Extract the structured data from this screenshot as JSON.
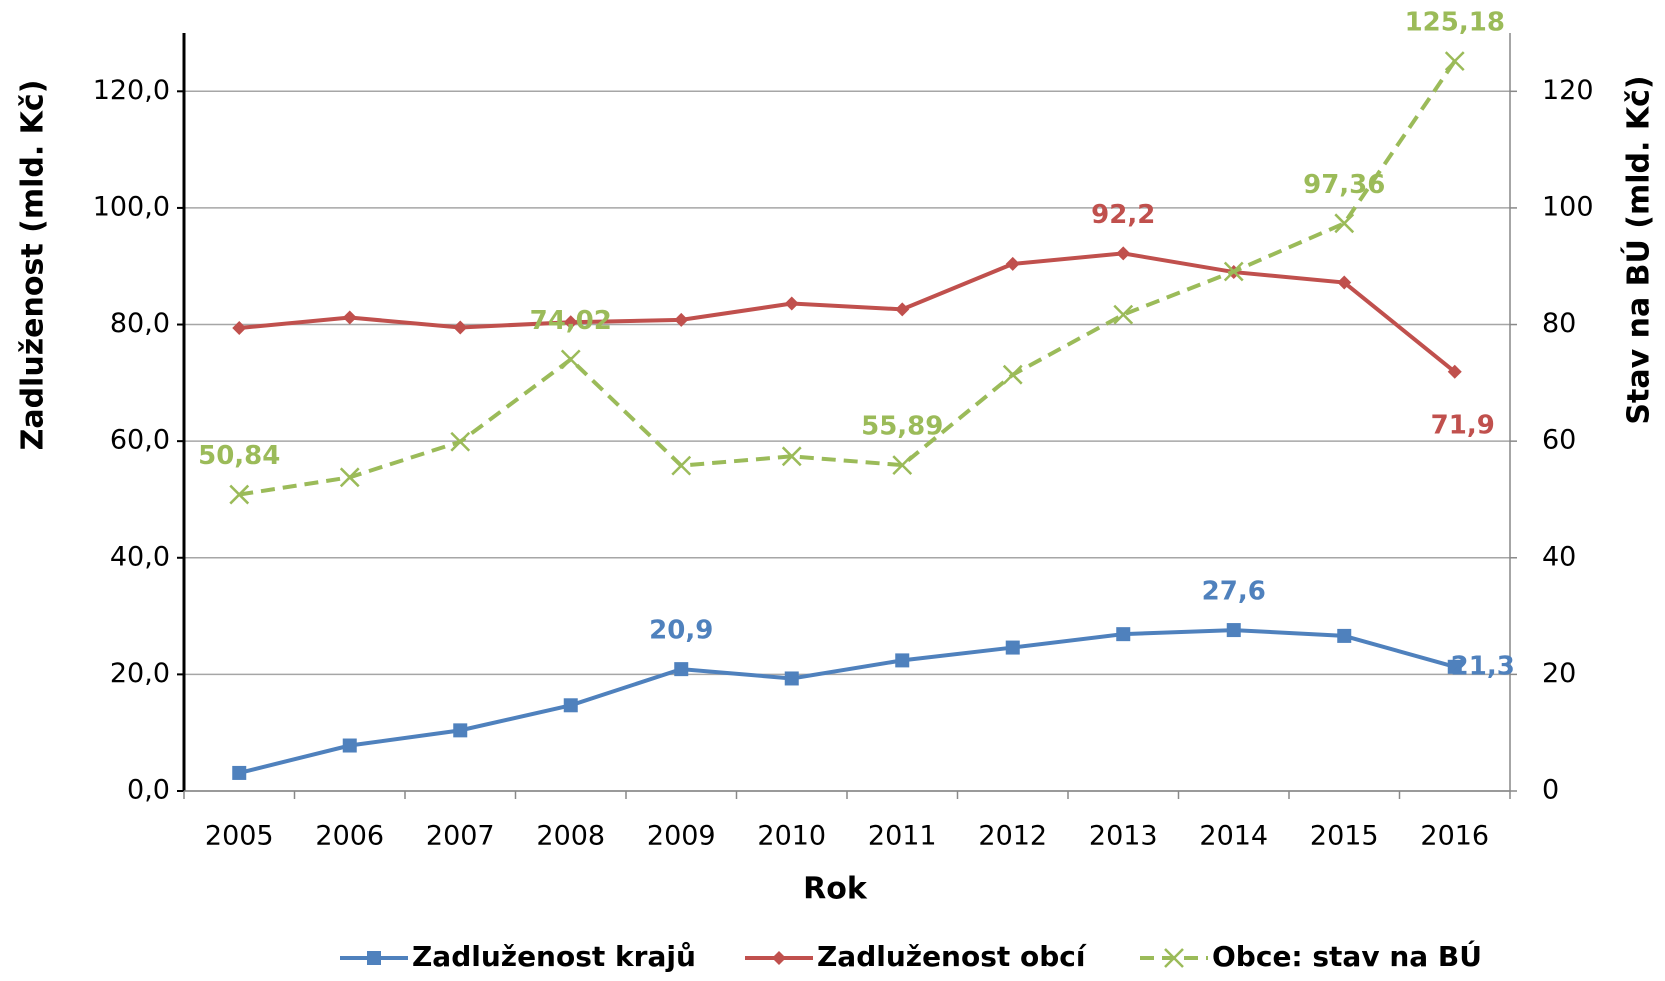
{
  "chart_data": {
    "type": "line",
    "x_label": "Rok",
    "y_label": "Zadluženost  (mld. Kč)",
    "y2_label": "Stav na BÚ (mld. Kč)",
    "categories": [
      "2005",
      "2006",
      "2007",
      "2008",
      "2009",
      "2010",
      "2011",
      "2012",
      "2013",
      "2014",
      "2015",
      "2016"
    ],
    "ylim": [
      0,
      130
    ],
    "yticks": [
      {
        "value": 0,
        "label": "0,0"
      },
      {
        "value": 20,
        "label": "20,0"
      },
      {
        "value": 40,
        "label": "40,0"
      },
      {
        "value": 60,
        "label": "60,0"
      },
      {
        "value": 80,
        "label": "80,0"
      },
      {
        "value": 100,
        "label": "100,0"
      },
      {
        "value": 120,
        "label": "120,0"
      }
    ],
    "y2lim": [
      0,
      130
    ],
    "y2ticks": [
      0,
      20,
      40,
      60,
      80,
      100,
      120
    ],
    "grid": true,
    "legend": "bottom",
    "series": [
      {
        "name": "Zadluženost krajů",
        "color": "#4f81bd",
        "marker": "square",
        "dash": false,
        "values": [
          3.1,
          7.8,
          10.4,
          14.7,
          20.9,
          19.3,
          22.4,
          24.6,
          26.9,
          27.6,
          26.6,
          21.3
        ],
        "value_labels": [
          null,
          null,
          null,
          null,
          "20,9",
          null,
          null,
          null,
          null,
          "27,6",
          null,
          "21,3"
        ]
      },
      {
        "name": "Zadluženost obcí",
        "color": "#c0504d",
        "marker": "diamond",
        "dash": false,
        "values": [
          79.4,
          81.2,
          79.5,
          80.4,
          80.8,
          83.6,
          82.6,
          90.4,
          92.2,
          89.0,
          87.2,
          71.9
        ],
        "value_labels": [
          null,
          null,
          null,
          null,
          null,
          null,
          null,
          null,
          "92,2",
          null,
          null,
          "71,9"
        ]
      },
      {
        "name": "Obce: stav na BÚ",
        "color": "#9bbb59",
        "marker": "x",
        "dash": true,
        "axis": "y2",
        "values": [
          50.84,
          53.8,
          59.9,
          74.02,
          55.8,
          57.4,
          55.89,
          71.4,
          81.7,
          89.1,
          97.36,
          125.18
        ],
        "value_labels": [
          "50,84",
          null,
          null,
          "74,02",
          null,
          null,
          "55,89",
          null,
          null,
          null,
          "97,36",
          "125,18"
        ]
      }
    ]
  }
}
